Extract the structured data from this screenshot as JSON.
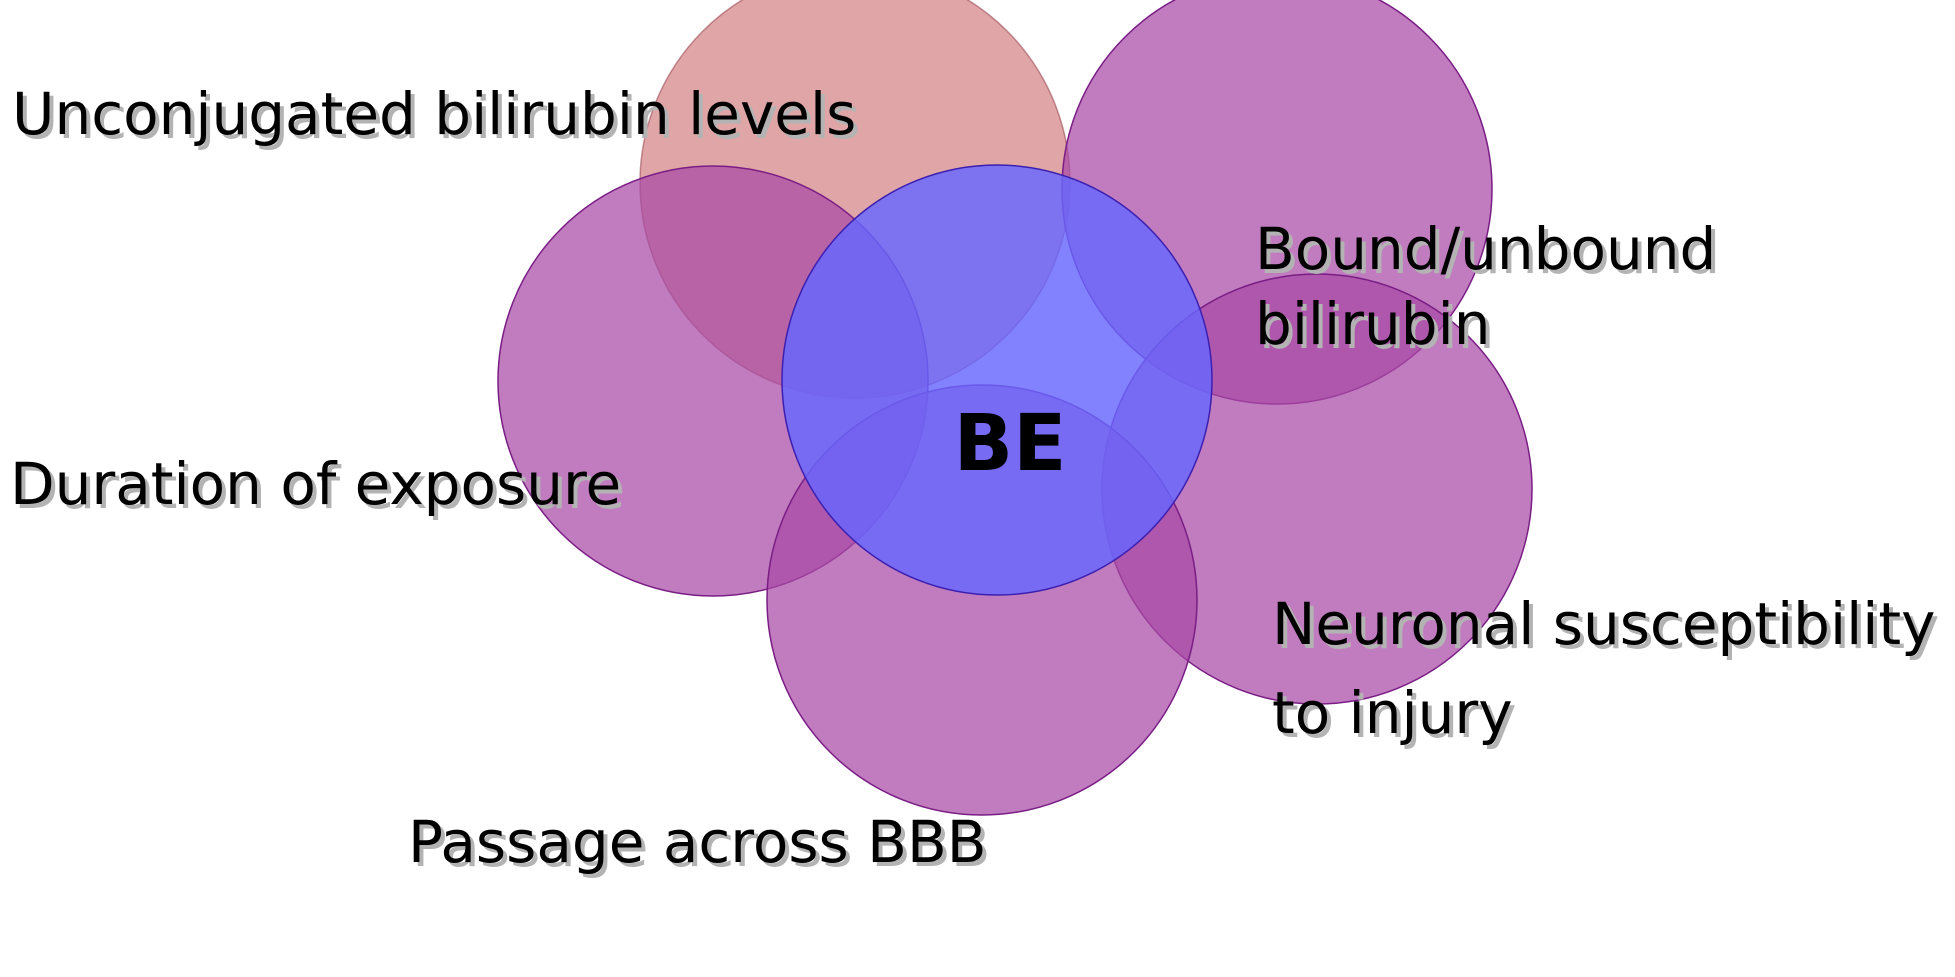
{
  "diagram": {
    "center_label": "BE",
    "factors": [
      {
        "id": "unconjugated",
        "lines": [
          "Unconjugated bilirubin levels"
        ],
        "color": "#d5888a"
      },
      {
        "id": "bound",
        "lines": [
          "Bound/unbound",
          "bilirubin"
        ],
        "color": "#a84aa5"
      },
      {
        "id": "duration",
        "lines": [
          "Duration of exposure"
        ],
        "color": "#a84aa5"
      },
      {
        "id": "neuronal",
        "lines": [
          "Neuronal susceptibility",
          "to injury"
        ],
        "color": "#a84aa5"
      },
      {
        "id": "passage",
        "lines": [
          "Passage across BBB"
        ],
        "color": "#a84aa5"
      }
    ],
    "center_color": "#6666ff"
  }
}
